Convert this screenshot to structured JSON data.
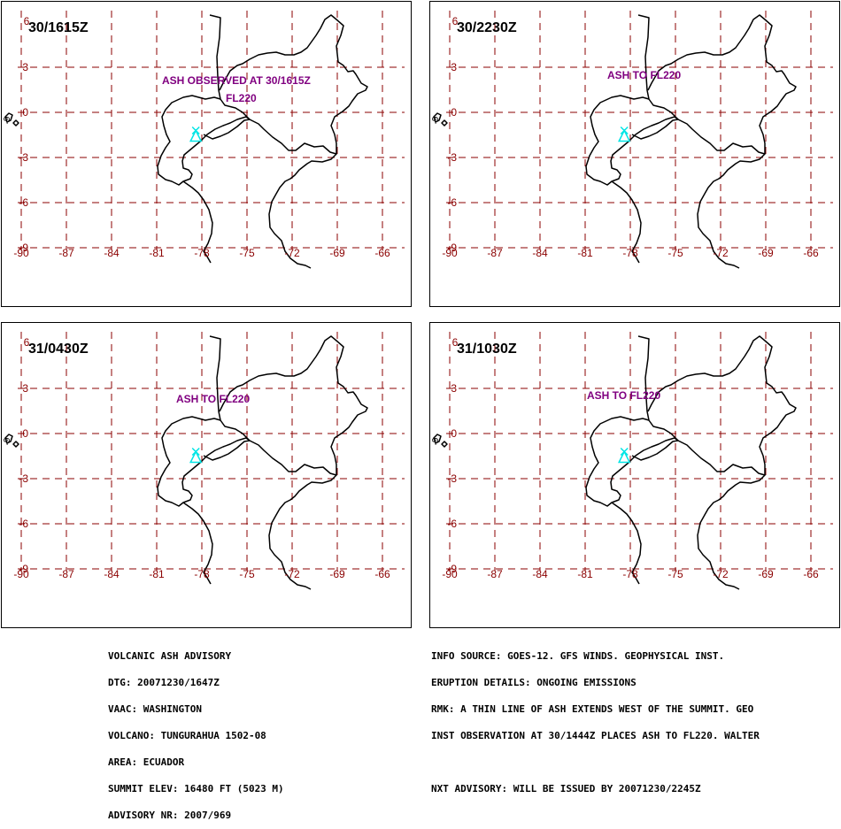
{
  "panels": [
    {
      "time": "30/1615Z",
      "annotations": [
        {
          "text": "ASH OBSERVED AT 30/1615Z"
        },
        {
          "text": "FL220"
        }
      ]
    },
    {
      "time": "30/2230Z",
      "annotations": [
        {
          "text": "ASH TO FL220"
        }
      ]
    },
    {
      "time": "31/0430Z",
      "annotations": [
        {
          "text": "ASH TO FL220"
        }
      ]
    },
    {
      "time": "31/1030Z",
      "annotations": [
        {
          "text": "ASH TO FL220"
        }
      ]
    }
  ],
  "map": {
    "lon_ticks": [
      "-90",
      "-87",
      "-84",
      "-81",
      "-78",
      "-75",
      "-72",
      "-69",
      "-66"
    ],
    "lat_ticks": [
      "3",
      "0",
      "-3",
      "-6",
      "-9"
    ],
    "lat_top_label": "6",
    "side_label": "-9",
    "volcano": {
      "name": "TUNGURAHUA",
      "lon": -78.4,
      "lat": -1.5
    },
    "colors": {
      "grid": "#8b0000",
      "annotation": "#800080",
      "volcano": "#00e5e5",
      "coast": "#000000"
    }
  },
  "advisory_left": [
    "VOLCANIC ASH ADVISORY",
    "DTG: 20071230/1647Z",
    "VAAC: WASHINGTON",
    "VOLCANO: TUNGURAHUA 1502-08",
    "AREA: ECUADOR",
    "SUMMIT ELEV: 16480 FT (5023 M)",
    "ADVISORY NR: 2007/969"
  ],
  "advisory_right": [
    "INFO SOURCE: GOES-12. GFS WINDS. GEOPHYSICAL INST.",
    "ERUPTION DETAILS: ONGOING EMISSIONS",
    "RMK: A THIN LINE OF ASH EXTENDS WEST OF THE SUMMIT. GEO",
    "INST OBSERVATION AT 30/1444Z PLACES ASH TO FL220. WALTER",
    "",
    "NXT ADVISORY: WILL BE ISSUED BY 20071230/2245Z"
  ]
}
